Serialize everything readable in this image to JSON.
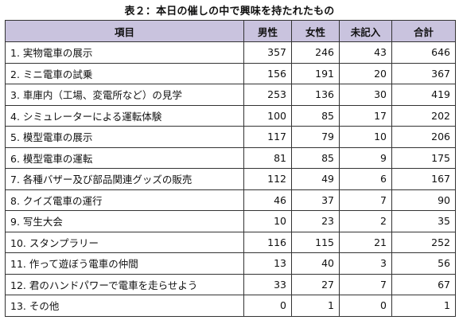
{
  "title": "表２：本日の催しの中で興味を持たれたもの",
  "table": {
    "headers": [
      "項目",
      "男性",
      "女性",
      "未記入",
      "合計"
    ],
    "rows": [
      {
        "item": "1.  実物電車の展示",
        "male": "357",
        "female": "246",
        "unanswered": "43",
        "total": "646"
      },
      {
        "item": "2.  ミニ電車の試乗",
        "male": "156",
        "female": "191",
        "unanswered": "20",
        "total": "367"
      },
      {
        "item": "3.  車庫内（工場、変電所など）の見学",
        "male": "253",
        "female": "136",
        "unanswered": "30",
        "total": "419"
      },
      {
        "item": "4.  シミュレーターによる運転体験",
        "male": "100",
        "female": "85",
        "unanswered": "17",
        "total": "202"
      },
      {
        "item": "5.  模型電車の展示",
        "male": "117",
        "female": "79",
        "unanswered": "10",
        "total": "206"
      },
      {
        "item": "6.  模型電車の運転",
        "male": "81",
        "female": "85",
        "unanswered": "9",
        "total": "175"
      },
      {
        "item": "7.  各種バザー及び部品関連グッズの販売",
        "male": "112",
        "female": "49",
        "unanswered": "6",
        "total": "167"
      },
      {
        "item": "8.  クイズ電車の運行",
        "male": "46",
        "female": "37",
        "unanswered": "7",
        "total": "90"
      },
      {
        "item": "9.  写生大会",
        "male": "10",
        "female": "23",
        "unanswered": "2",
        "total": "35"
      },
      {
        "item": "10.  スタンプラリー",
        "male": "116",
        "female": "115",
        "unanswered": "21",
        "total": "252"
      },
      {
        "item": "11.  作って遊ぼう電車の仲間",
        "male": "13",
        "female": "40",
        "unanswered": "3",
        "total": "56"
      },
      {
        "item": "12.  君のハンドパワーで電車を走らせよう",
        "male": "33",
        "female": "27",
        "unanswered": "7",
        "total": "67"
      },
      {
        "item": "13.  その他",
        "male": "0",
        "female": "1",
        "unanswered": "0",
        "total": "1"
      }
    ]
  }
}
